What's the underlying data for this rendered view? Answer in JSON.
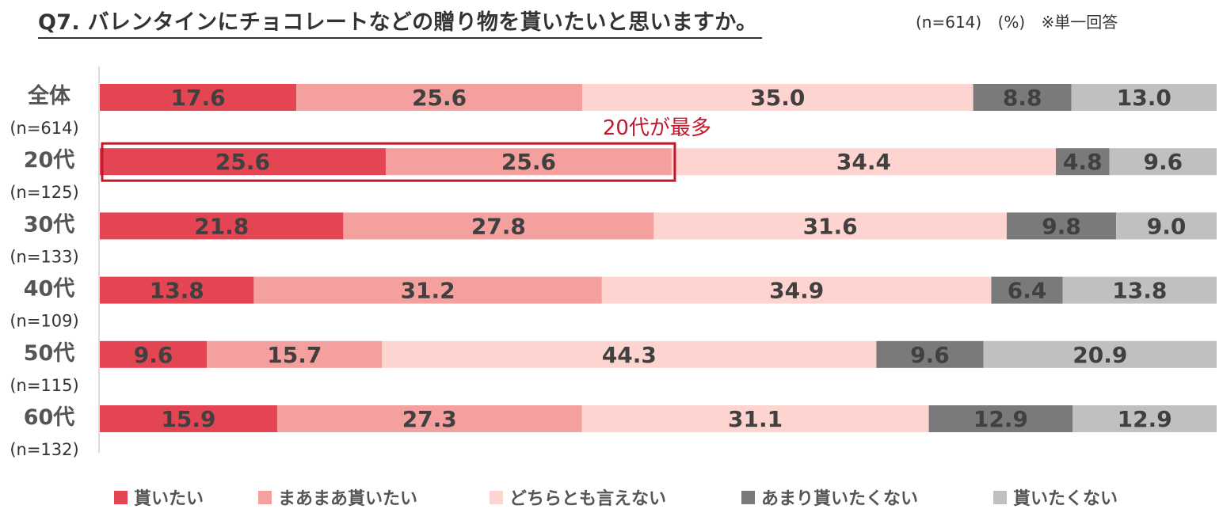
{
  "title": "Q7. バレンタインにチョコレートなどの贈り物を貰いたいと思いますか。",
  "meta": {
    "n": "(n=614)",
    "unit": "(%)",
    "note": "※単一回答"
  },
  "chart_data": {
    "type": "bar",
    "orientation": "horizontal-stacked-100",
    "categories": [
      "全体",
      "20代",
      "30代",
      "40代",
      "50代",
      "60代"
    ],
    "category_n": [
      "(n=614)",
      "(n=125)",
      "(n=133)",
      "(n=109)",
      "(n=115)",
      "(n=132)"
    ],
    "series": [
      {
        "name": "貰いたい",
        "color": "#e44552",
        "values": [
          17.6,
          25.6,
          21.8,
          13.8,
          9.6,
          15.9
        ]
      },
      {
        "name": "まあまあ貰いたい",
        "color": "#f4a09f",
        "values": [
          25.6,
          25.6,
          27.8,
          31.2,
          15.7,
          27.3
        ]
      },
      {
        "name": "どちらとも言えない",
        "color": "#fdd4cf",
        "values": [
          35.0,
          34.4,
          31.6,
          34.9,
          44.3,
          31.1
        ]
      },
      {
        "name": "あまり貰いたくない",
        "color": "#7a7a7a",
        "values": [
          8.8,
          4.8,
          9.8,
          6.4,
          9.6,
          12.9
        ]
      },
      {
        "name": "貰いたくない",
        "color": "#c0c0c0",
        "values": [
          13.0,
          9.6,
          9.0,
          13.8,
          20.9,
          12.9
        ]
      }
    ],
    "annotation": {
      "text": "20代が最多",
      "row": "20代",
      "series_start": 0,
      "series_end": 1,
      "color": "#c0192c"
    },
    "label_color": "#404040"
  }
}
